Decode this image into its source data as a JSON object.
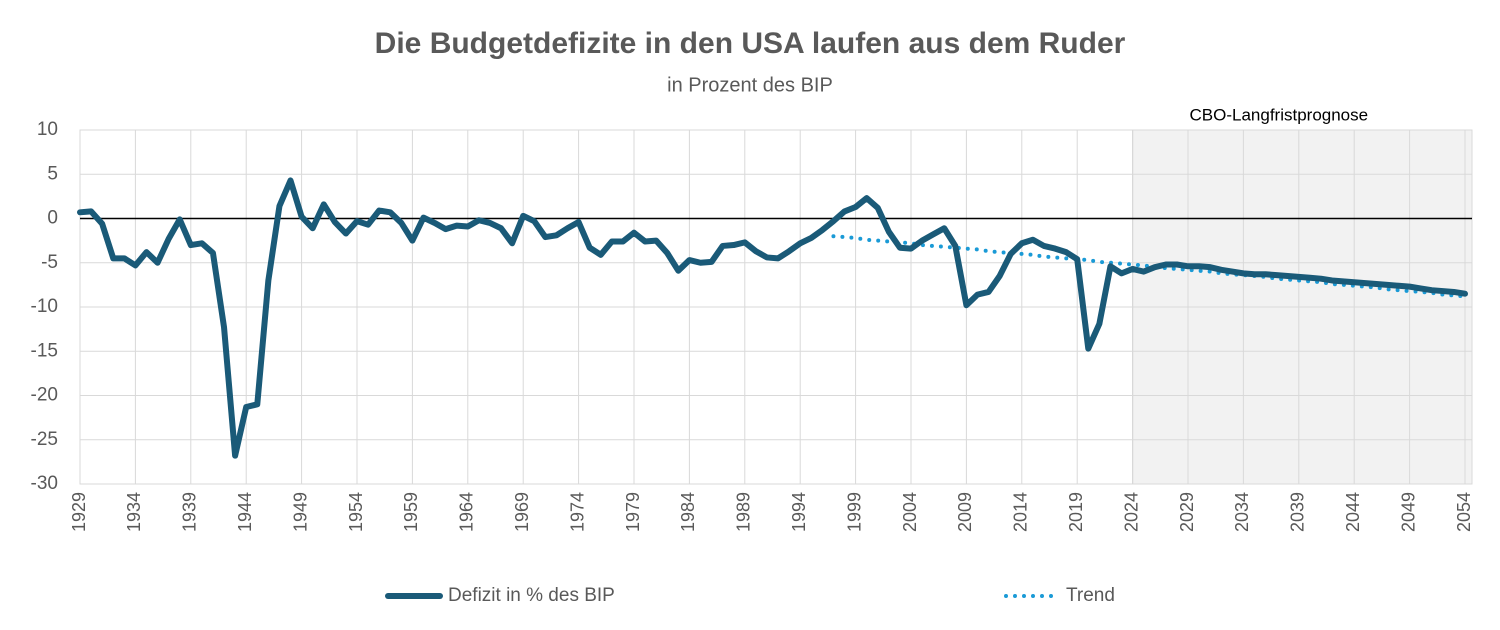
{
  "chart_data": {
    "type": "line",
    "title": "Die Budgetdefizite in den USA laufen aus dem Ruder",
    "subtitle": "in Prozent des BIP",
    "annotations": [
      {
        "text": "CBO-Langfristprognose",
        "x": [
          2024,
          2054
        ]
      }
    ],
    "x": [
      1929,
      1930,
      1931,
      1932,
      1933,
      1934,
      1935,
      1936,
      1937,
      1938,
      1939,
      1940,
      1941,
      1942,
      1943,
      1944,
      1945,
      1946,
      1947,
      1948,
      1949,
      1950,
      1951,
      1952,
      1953,
      1954,
      1955,
      1956,
      1957,
      1958,
      1959,
      1960,
      1961,
      1962,
      1963,
      1964,
      1965,
      1966,
      1967,
      1968,
      1969,
      1970,
      1971,
      1972,
      1973,
      1974,
      1975,
      1976,
      1977,
      1978,
      1979,
      1980,
      1981,
      1982,
      1983,
      1984,
      1985,
      1986,
      1987,
      1988,
      1989,
      1990,
      1991,
      1992,
      1993,
      1994,
      1995,
      1996,
      1997,
      1998,
      1999,
      2000,
      2001,
      2002,
      2003,
      2004,
      2005,
      2006,
      2007,
      2008,
      2009,
      2010,
      2011,
      2012,
      2013,
      2014,
      2015,
      2016,
      2017,
      2018,
      2019,
      2020,
      2021,
      2022,
      2023,
      2024,
      2025,
      2026,
      2027,
      2028,
      2029,
      2030,
      2031,
      2032,
      2033,
      2034,
      2035,
      2036,
      2037,
      2038,
      2039,
      2040,
      2041,
      2042,
      2043,
      2044,
      2045,
      2046,
      2047,
      2048,
      2049,
      2050,
      2051,
      2052,
      2053,
      2054
    ],
    "series": [
      {
        "name": "Defizit in % des BIP",
        "color": "#1a5a78",
        "style": "solid",
        "values": [
          0.7,
          0.8,
          -0.6,
          -4.5,
          -4.5,
          -5.3,
          -3.8,
          -5.0,
          -2.3,
          -0.1,
          -3.0,
          -2.8,
          -3.9,
          -12.3,
          -26.8,
          -21.3,
          -21.0,
          -7.0,
          1.4,
          4.3,
          0.2,
          -1.1,
          1.6,
          -0.4,
          -1.7,
          -0.3,
          -0.7,
          0.9,
          0.7,
          -0.5,
          -2.5,
          0.1,
          -0.5,
          -1.2,
          -0.8,
          -0.9,
          -0.2,
          -0.5,
          -1.1,
          -2.8,
          0.3,
          -0.3,
          -2.1,
          -1.9,
          -1.1,
          -0.4,
          -3.3,
          -4.1,
          -2.6,
          -2.6,
          -1.6,
          -2.6,
          -2.5,
          -3.9,
          -5.9,
          -4.7,
          -5.0,
          -4.9,
          -3.1,
          -3.0,
          -2.7,
          -3.7,
          -4.4,
          -4.5,
          -3.7,
          -2.8,
          -2.2,
          -1.3,
          -0.3,
          0.8,
          1.3,
          2.3,
          1.2,
          -1.5,
          -3.3,
          -3.4,
          -2.5,
          -1.8,
          -1.1,
          -3.1,
          -9.8,
          -8.6,
          -8.3,
          -6.5,
          -4.0,
          -2.8,
          -2.4,
          -3.1,
          -3.4,
          -3.8,
          -4.6,
          -14.7,
          -11.9,
          -5.4,
          -6.2,
          -5.7,
          -6.0,
          -5.5,
          -5.2,
          -5.2,
          -5.4,
          -5.4,
          -5.5,
          -5.8,
          -6.0,
          -6.2,
          -6.3,
          -6.3,
          -6.4,
          -6.5,
          -6.6,
          -6.7,
          -6.8,
          -7.0,
          -7.1,
          -7.2,
          -7.3,
          -7.4,
          -7.5,
          -7.6,
          -7.7,
          -7.9,
          -8.1,
          -8.2,
          -8.3,
          -8.5
        ]
      },
      {
        "name": "Trend",
        "color": "#1a9ad6",
        "style": "dotted",
        "values": [
          null,
          null,
          null,
          null,
          null,
          null,
          null,
          null,
          null,
          null,
          null,
          null,
          null,
          null,
          null,
          null,
          null,
          null,
          null,
          null,
          null,
          null,
          null,
          null,
          null,
          null,
          null,
          null,
          null,
          null,
          null,
          null,
          null,
          null,
          null,
          null,
          null,
          null,
          null,
          null,
          null,
          null,
          null,
          null,
          null,
          null,
          null,
          null,
          null,
          null,
          null,
          null,
          null,
          null,
          null,
          null,
          null,
          null,
          null,
          null,
          null,
          null,
          null,
          null,
          null,
          null,
          null,
          null,
          -2.0,
          -2.1,
          -2.2,
          -2.4,
          -2.5,
          -2.6,
          -2.7,
          -2.8,
          -3.0,
          -3.1,
          -3.2,
          -3.3,
          -3.4,
          -3.5,
          -3.7,
          -3.8,
          -3.9,
          -4.0,
          -4.1,
          -4.3,
          -4.4,
          -4.5,
          -4.6,
          -4.7,
          -4.9,
          -5.0,
          -5.1,
          -5.2,
          -5.3,
          -5.5,
          -5.6,
          -5.7,
          -5.8,
          -5.9,
          -6.0,
          -6.2,
          -6.3,
          -6.4,
          -6.5,
          -6.6,
          -6.8,
          -6.9,
          -7.0,
          -7.1,
          -7.2,
          -7.4,
          -7.5,
          -7.6,
          -7.7,
          -7.8,
          -8.0,
          -8.1,
          -8.2,
          -8.3,
          -8.4,
          -8.6,
          -8.7,
          -8.8
        ]
      }
    ],
    "xlim": [
      1929,
      2054
    ],
    "xticks": [
      1929,
      1934,
      1939,
      1944,
      1949,
      1954,
      1959,
      1964,
      1969,
      1974,
      1979,
      1984,
      1989,
      1994,
      1999,
      2004,
      2009,
      2014,
      2019,
      2024,
      2029,
      2034,
      2039,
      2044,
      2049,
      2054
    ],
    "ylim": [
      -30,
      10
    ],
    "yticks": [
      -30,
      -25,
      -20,
      -15,
      -10,
      -5,
      0,
      5,
      10
    ],
    "grid": true,
    "zero_line": true,
    "legend": "bottom"
  }
}
